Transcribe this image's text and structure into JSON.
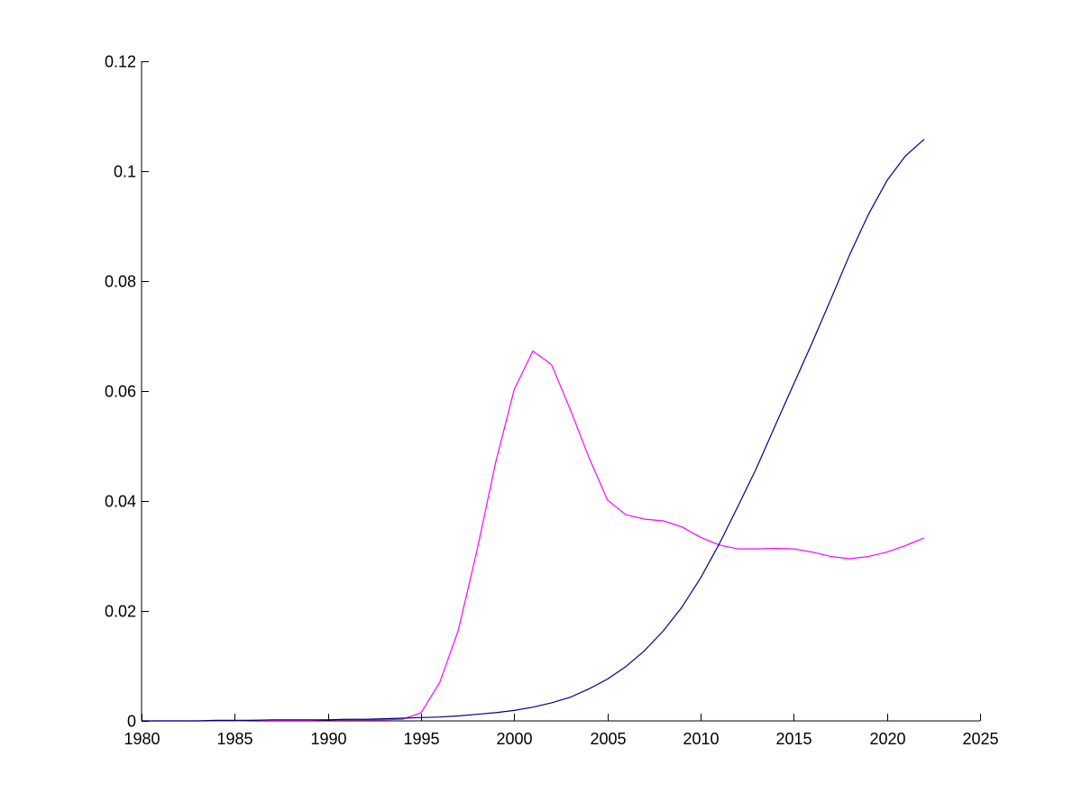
{
  "chart_data": {
    "type": "line",
    "title": "",
    "xlabel": "",
    "ylabel": "",
    "xlim": [
      1980,
      2025
    ],
    "ylim": [
      0,
      0.12
    ],
    "x_ticks": [
      1980,
      1985,
      1990,
      1995,
      2000,
      2005,
      2010,
      2015,
      2020,
      2025
    ],
    "y_ticks": [
      0,
      0.02,
      0.04,
      0.06,
      0.08,
      0.1,
      0.12
    ],
    "x_tick_labels": [
      "1980",
      "1985",
      "1990",
      "1995",
      "2000",
      "2005",
      "2010",
      "2015",
      "2020",
      "2025"
    ],
    "y_tick_labels": [
      "0",
      "0.02",
      "0.04",
      "0.06",
      "0.08",
      "0.1",
      "0.12"
    ],
    "grid": false,
    "legend": "none",
    "series": [
      {
        "color": "#ff00ff",
        "x": [
          1980,
          1981,
          1982,
          1983,
          1984,
          1985,
          1986,
          1987,
          1988,
          1989,
          1990,
          1991,
          1992,
          1993,
          1994,
          1995,
          1996,
          1997,
          1998,
          1999,
          2000,
          2001,
          2002,
          2003,
          2004,
          2005,
          2006,
          2007,
          2008,
          2009,
          2010,
          2011,
          2012,
          2013,
          2014,
          2015,
          2016,
          2017,
          2018,
          2019,
          2020,
          2021,
          2022
        ],
        "y": [
          0,
          0,
          0,
          0,
          0,
          0,
          0.0001,
          0.0001,
          0.0001,
          0.0001,
          0.0002,
          0.0002,
          0.0002,
          0.0002,
          0.0003,
          0.0015,
          0.007,
          0.0165,
          0.031,
          0.047,
          0.0603,
          0.0673,
          0.0648,
          0.0567,
          0.048,
          0.0402,
          0.0375,
          0.0367,
          0.0364,
          0.0353,
          0.0334,
          0.032,
          0.0313,
          0.0313,
          0.0314,
          0.0313,
          0.0307,
          0.0299,
          0.0295,
          0.0299,
          0.0307,
          0.0319,
          0.0333
        ]
      },
      {
        "color": "#00008b",
        "x": [
          1980,
          1981,
          1982,
          1983,
          1984,
          1985,
          1986,
          1987,
          1988,
          1989,
          1990,
          1991,
          1992,
          1993,
          1994,
          1995,
          1996,
          1997,
          1998,
          1999,
          2000,
          2001,
          2002,
          2003,
          2004,
          2005,
          2006,
          2007,
          2008,
          2009,
          2010,
          2011,
          2012,
          2013,
          2014,
          2015,
          2016,
          2017,
          2018,
          2019,
          2020,
          2021,
          2022
        ],
        "y": [
          0,
          0,
          0,
          0,
          0.0001,
          0.0001,
          0.0001,
          0.0002,
          0.0002,
          0.0002,
          0.0002,
          0.0003,
          0.0003,
          0.0004,
          0.0005,
          0.0006,
          0.0007,
          0.0009,
          0.0012,
          0.0015,
          0.0019,
          0.0025,
          0.0033,
          0.0043,
          0.0058,
          0.0076,
          0.0099,
          0.0128,
          0.0164,
          0.0207,
          0.026,
          0.0322,
          0.039,
          0.046,
          0.0537,
          0.0613,
          0.0689,
          0.0768,
          0.0848,
          0.0921,
          0.0983,
          0.1028,
          0.1058
        ]
      }
    ]
  }
}
